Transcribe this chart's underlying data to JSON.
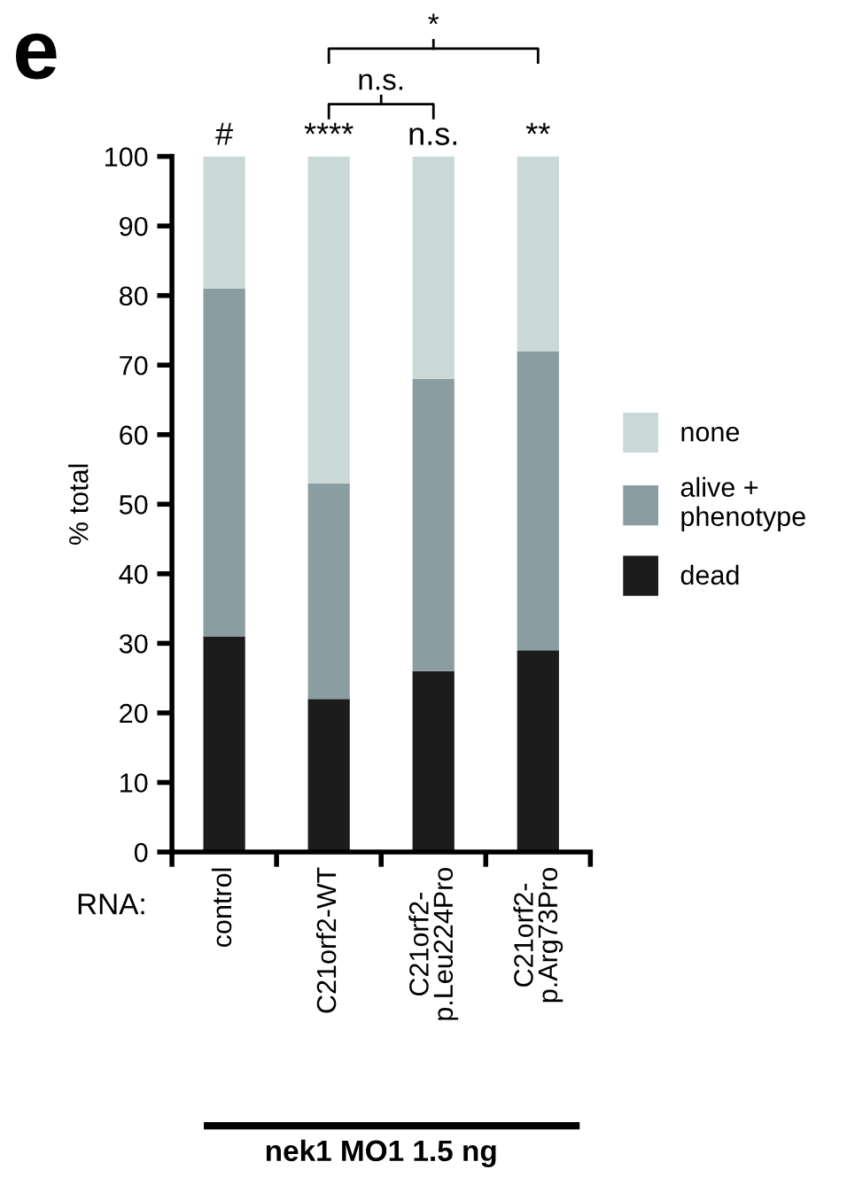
{
  "chart_data": {
    "type": "bar",
    "stacked": true,
    "ylabel": "% total",
    "categories": [
      "control",
      "C21orf2-WT",
      "C21orf2-\np.Leu224Pro",
      "C21orf2-\np.Arg73Pro"
    ],
    "series": [
      {
        "name": "dead",
        "color": "#1c1c1c",
        "values": [
          31,
          22,
          26,
          29
        ]
      },
      {
        "name": "alive +\nphenotype",
        "color": "#8a9ea1",
        "values": [
          50,
          31,
          42,
          43
        ]
      },
      {
        "name": "none",
        "color": "#cbd8d8",
        "values": [
          19,
          47,
          32,
          28
        ]
      }
    ],
    "ylim": [
      0,
      100
    ],
    "yticks": [
      0,
      10,
      20,
      30,
      40,
      50,
      60,
      70,
      80,
      90,
      100
    ],
    "legend": "right",
    "grid": false,
    "annotations": [
      "e",
      "RNA:",
      "nek1 MO1 1.5 ng",
      "n.s.",
      "*",
      {
        "text": "#",
        "x": "control",
        "y": 100
      },
      {
        "text": "****",
        "x": "C21orf2-WT",
        "y": 100
      },
      {
        "text": "n.s.",
        "x": "C21orf2-\np.Leu224Pro",
        "y": 100
      },
      {
        "text": "**",
        "x": "C21orf2-\np.Arg73Pro",
        "y": 100
      }
    ]
  }
}
